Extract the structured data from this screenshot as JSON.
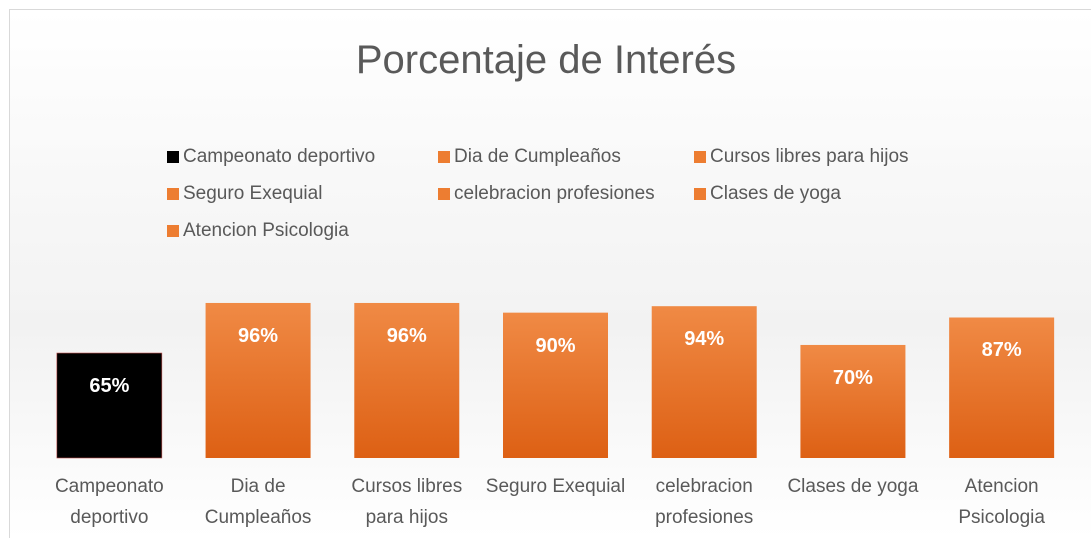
{
  "chart_data": {
    "type": "bar",
    "title": "Porcentaje de Interés",
    "categories": [
      "Campeonato deportivo",
      "Dia de Cumpleaños",
      "Cursos libres para hijos",
      "Seguro Exequial",
      "celebracion  profesiones",
      "Clases de yoga",
      "Atencion Psicologia"
    ],
    "values": [
      65,
      96,
      96,
      90,
      94,
      70,
      87
    ],
    "value_labels": [
      "65%",
      "96%",
      "96%",
      "90%",
      "94%",
      "70%",
      "87%"
    ],
    "colors": [
      "#000000",
      "#ed7d31",
      "#ed7d31",
      "#ed7d31",
      "#ed7d31",
      "#ed7d31",
      "#ed7d31"
    ],
    "legend": "top"
  }
}
